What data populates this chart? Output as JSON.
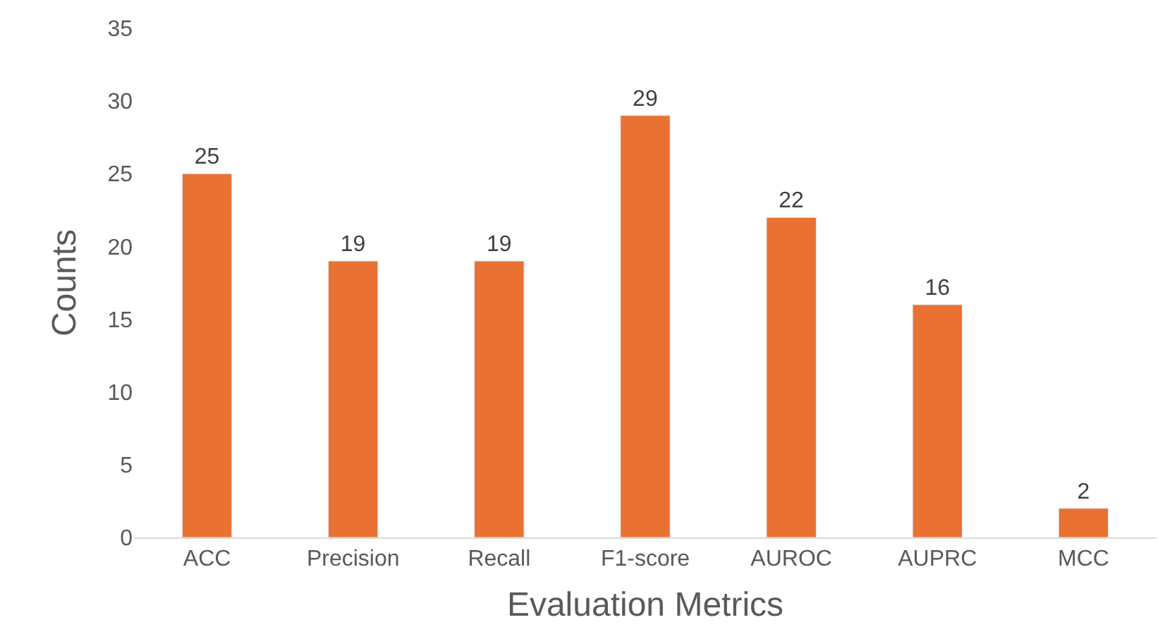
{
  "chart_data": {
    "type": "bar",
    "xlabel": "Evaluation Metrics",
    "ylabel": "Counts",
    "categories": [
      "ACC",
      "Precision",
      "Recall",
      "F1-score",
      "AUROC",
      "AUPRC",
      "MCC"
    ],
    "values": [
      25,
      19,
      19,
      29,
      22,
      16,
      2
    ],
    "color": "#e97132",
    "ylim": [
      0,
      35
    ],
    "yticks": [
      0,
      5,
      10,
      15,
      20,
      25,
      30,
      35
    ],
    "grid": false,
    "data_labels": true
  }
}
